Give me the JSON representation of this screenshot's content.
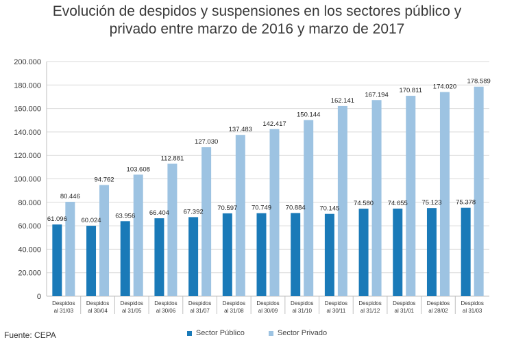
{
  "chart_data": {
    "type": "bar",
    "title_lines": [
      "Evolución de despidos y suspensiones en los sectores público y",
      "privado entre marzo de 2016 y marzo de 2017"
    ],
    "categories": [
      [
        "Despidos",
        "al 31/03"
      ],
      [
        "Despidos",
        "al 30/04"
      ],
      [
        "Despidos",
        "al 31/05"
      ],
      [
        "Despidos",
        "al 30/06"
      ],
      [
        "Despidos",
        "al 31/07"
      ],
      [
        "Despidos",
        "al 31/08"
      ],
      [
        "Despidos",
        "al 30/09"
      ],
      [
        "Despidos",
        "al 31/10"
      ],
      [
        "Despidos",
        "al 30/11"
      ],
      [
        "Despidos",
        "al 31/12"
      ],
      [
        "Despidos",
        "al 31/01"
      ],
      [
        "Despidos",
        "al 28/02"
      ],
      [
        "Despidos",
        "al 31/03"
      ]
    ],
    "series": [
      {
        "name": "Sector Público",
        "color": "#1a7ab8",
        "values": [
          61096,
          60024,
          63956,
          66404,
          67392,
          70597,
          70749,
          70884,
          70145,
          74580,
          74655,
          75123,
          75378
        ],
        "labels": [
          "61.096",
          "60.024",
          "63.956",
          "66.404",
          "67.392",
          "70.597",
          "70.749",
          "70.884",
          "70.145",
          "74.580",
          "74.655",
          "75.123",
          "75.378"
        ]
      },
      {
        "name": "Sector Privado",
        "color": "#9dc3e2",
        "values": [
          80446,
          94762,
          103608,
          112881,
          127030,
          137483,
          142417,
          150144,
          162141,
          167194,
          170811,
          174020,
          178589
        ],
        "labels": [
          "80.446",
          "94.762",
          "103.608",
          "112.881",
          "127.030",
          "137.483",
          "142.417",
          "150.144",
          "162.141",
          "167.194",
          "170.811",
          "174.020",
          "178.589"
        ]
      }
    ],
    "ylim": [
      0,
      200000
    ],
    "yticks": [
      0,
      20000,
      40000,
      60000,
      80000,
      100000,
      120000,
      140000,
      160000,
      180000,
      200000
    ],
    "ytick_labels": [
      "0",
      "20.000",
      "40.000",
      "60.000",
      "80.000",
      "100.000",
      "120.000",
      "140.000",
      "160.000",
      "180.000",
      "200.000"
    ],
    "grid": true,
    "legend_position": "bottom",
    "xlabel": "",
    "ylabel": ""
  },
  "source_note": "Fuente: CEPA",
  "colors": {
    "grid": "#d9d9d9",
    "axis": "#bfbfbf",
    "text": "#333333"
  }
}
